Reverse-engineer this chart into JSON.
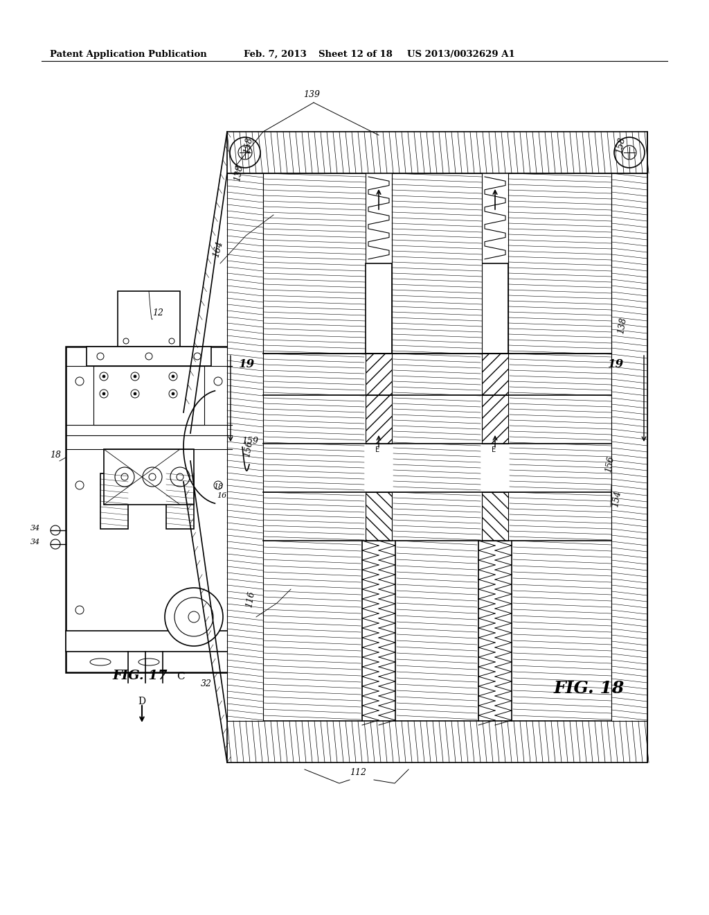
{
  "background_color": "#ffffff",
  "header_text": "Patent Application Publication",
  "header_date": "Feb. 7, 2013",
  "header_sheet": "Sheet 12 of 18",
  "header_patent": "US 2013/0032629 A1",
  "fig17_label": "FIG. 17",
  "fig18_label": "FIG. 18",
  "fig17_C": "C",
  "fig17_18": "18",
  "fig17_16": "16"
}
